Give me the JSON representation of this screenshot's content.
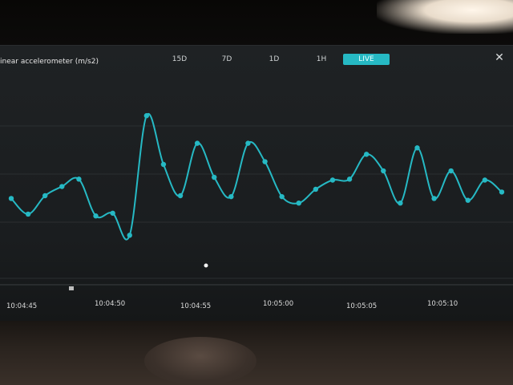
{
  "app": {
    "title": "inear accelerometer (m/s2)",
    "accent_color": "#26b9c4",
    "close_icon": "close-icon"
  },
  "tabs": [
    {
      "label": "15D",
      "active": false
    },
    {
      "label": "7D",
      "active": false
    },
    {
      "label": "1D",
      "active": false
    },
    {
      "label": "1H",
      "active": false
    },
    {
      "label": "LIVE",
      "active": true
    }
  ],
  "chart_data": {
    "type": "line",
    "title": "",
    "xlabel": "",
    "ylabel": "",
    "x_ticks": [
      "10:04:45",
      "10:04:50",
      "10:04:55",
      "10:05:00",
      "10:05:05",
      "10:05:10"
    ],
    "series": [
      {
        "color": "#26b9c4",
        "values": [
          0.35,
          0.18,
          0.38,
          0.48,
          0.56,
          0.16,
          0.19,
          -0.05,
          1.25,
          0.72,
          0.38,
          0.95,
          0.58,
          0.37,
          0.95,
          0.75,
          0.37,
          0.3,
          0.45,
          0.55,
          0.56,
          0.83,
          0.65,
          0.3,
          0.9,
          0.35,
          0.65,
          0.33,
          0.55,
          0.42
        ]
      }
    ],
    "ylim": [
      -0.3,
      1.4
    ],
    "grid": true
  }
}
